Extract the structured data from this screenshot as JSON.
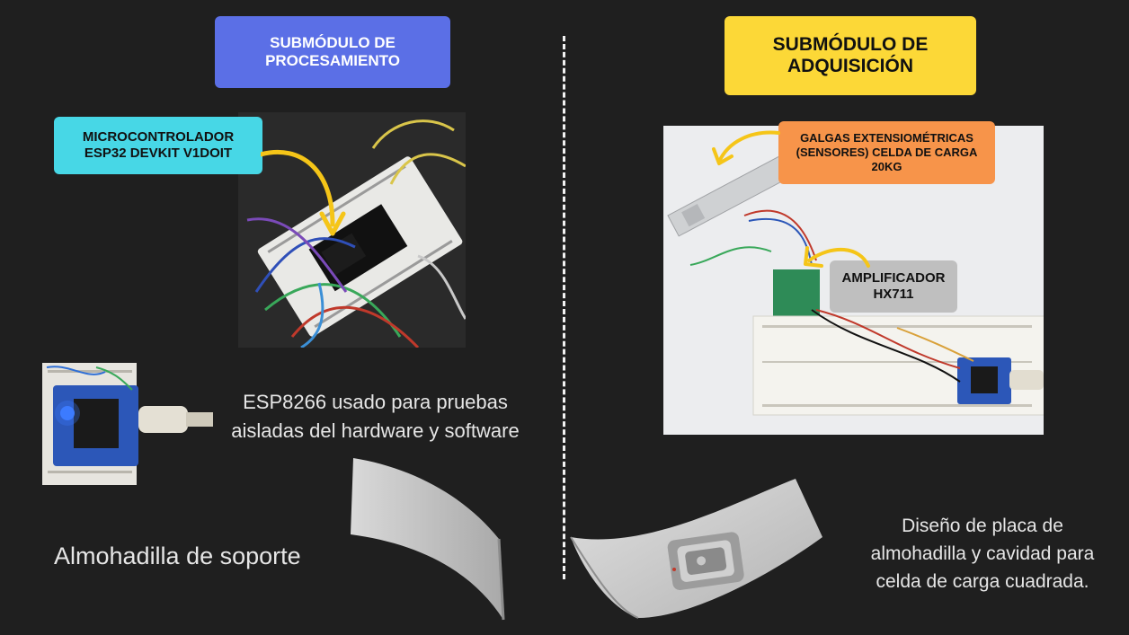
{
  "headers": {
    "procesamiento": "SUBMÓDULO DE\nPROCESAMIENTO",
    "adquisicion": "SUBMÓDULO DE\nADQUISICIÓN"
  },
  "labels": {
    "microcontrolador": "MICROCONTROLADOR\nESP32 DEVKIT V1DOIT",
    "galgas": "GALGAS EXTENSIOMÉTRICAS\n(SENSORES) CELDA DE CARGA\n20KG",
    "amplificador": "AMPLIFICADOR\nHX711"
  },
  "captions": {
    "esp8266": "ESP8266 usado para pruebas\naisladas del hardware y software",
    "almohadilla": "Almohadilla de soporte",
    "diseno": "Diseño de placa de\nalmohadilla y cavidad para\ncelda de carga cuadrada."
  },
  "colors": {
    "background": "#1f1f1f",
    "procesamiento_header": "#5b6fe6",
    "adquisicion_header": "#fcd837",
    "microcontrolador_label": "#47d7e6",
    "galgas_label": "#f7944a",
    "amplificador_label": "#bfbfbf",
    "arrow": "#f5c518"
  }
}
